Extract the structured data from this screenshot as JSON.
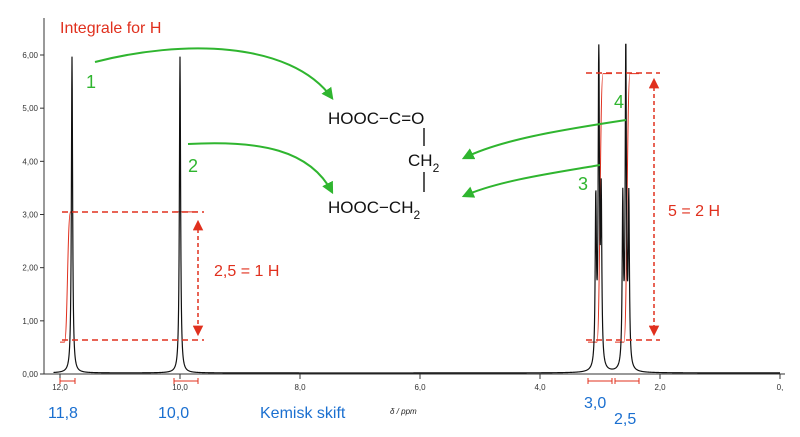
{
  "chart_data": {
    "type": "line",
    "title": "Integrale for H",
    "xlabel_unit": "δ / ppm",
    "xlabel_custom": "Kemisk skift",
    "xlim": [
      12.0,
      0.0
    ],
    "ylim": [
      0,
      6.5
    ],
    "x_ticks": [
      "12,0",
      "10,0",
      "8,0",
      "6,0",
      "4,0",
      "2,0",
      "0,"
    ],
    "x_tick_values": [
      12,
      10,
      8,
      6,
      4,
      2,
      0
    ],
    "y_ticks": [
      "0,00",
      "1,00",
      "2,00",
      "3,00",
      "4,00",
      "5,00",
      "6,00"
    ],
    "y_tick_values": [
      0,
      1,
      2,
      3,
      4,
      5,
      6
    ],
    "peaks": [
      {
        "ppm": 11.8,
        "height": 5.95
      },
      {
        "ppm": 10.0,
        "height": 5.95
      },
      {
        "ppm": 3.07,
        "height": 3.1
      },
      {
        "ppm": 3.02,
        "height": 6.0
      },
      {
        "ppm": 2.98,
        "height": 3.1
      },
      {
        "ppm": 2.62,
        "height": 3.1
      },
      {
        "ppm": 2.57,
        "height": 6.0
      },
      {
        "ppm": 2.52,
        "height": 3.1
      }
    ],
    "integral_steps": [
      {
        "from": 12.0,
        "to": 11.75,
        "start": 0.6,
        "end": 3.05
      },
      {
        "from": 10.1,
        "to": 9.7,
        "start": 3.05,
        "end": 3.05
      },
      {
        "from": 3.2,
        "to": 2.8,
        "start": 0.6,
        "end": 5.65
      },
      {
        "from": 2.75,
        "to": 2.35,
        "start": 0.6,
        "end": 5.65
      }
    ],
    "peak_labels": [
      "11,8",
      "10,0",
      "3,0",
      "2,5"
    ],
    "annotations": {
      "ratio_left": "2,5 = 1 H",
      "ratio_right": "5 = 2 H",
      "numbers": [
        "1",
        "2",
        "3",
        "4"
      ]
    }
  },
  "molecule": {
    "line1": "HOOC−C=O",
    "ch2_middle": "CH",
    "line3": "HOOC−CH",
    "sub": "2"
  },
  "colors": {
    "spectrum": "#111111",
    "integral": "#e0301e",
    "arrow": "#2fb52f",
    "label_blue": "#1a6fd0"
  }
}
